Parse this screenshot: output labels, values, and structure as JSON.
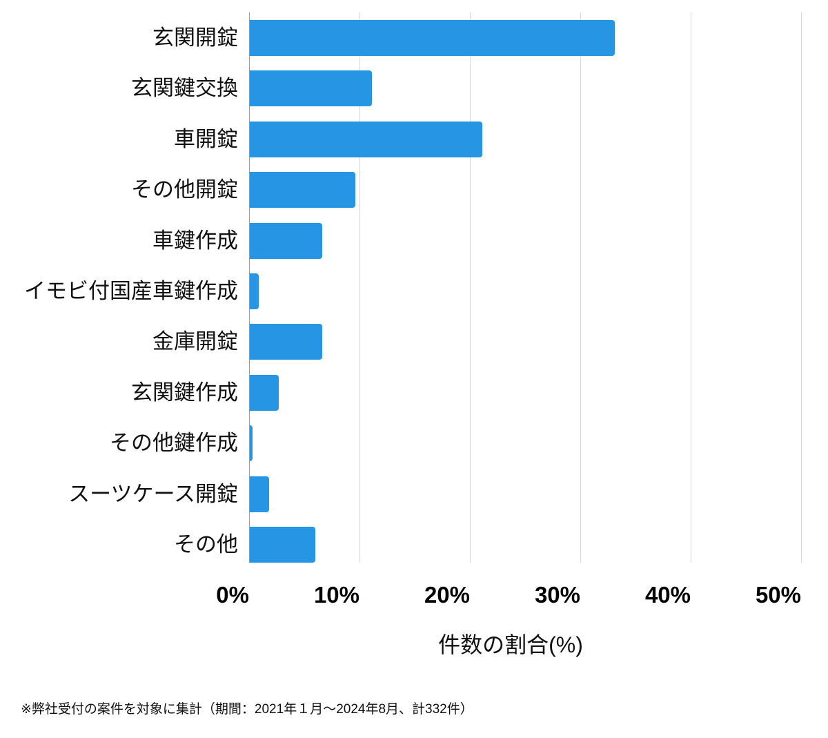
{
  "chart_data": {
    "type": "bar",
    "orientation": "horizontal",
    "title": "",
    "categories": [
      "玄関開錠",
      "玄関鍵交換",
      "車開錠",
      "その他開錠",
      "車鍵作成",
      "イモビ付国産車鍵作成",
      "金庫開錠",
      "玄関鍵作成",
      "その他鍵作成",
      "スーツケース開錠",
      "その他"
    ],
    "values": [
      33.1,
      11.1,
      21.1,
      9.6,
      6.6,
      0.9,
      6.6,
      2.7,
      0.3,
      1.8,
      6.0
    ],
    "xlabel": "件数の割合(%)",
    "ylabel": "",
    "xlim": [
      0,
      50
    ],
    "xticks": [
      "0%",
      "10%",
      "20%",
      "30%",
      "40%",
      "50%"
    ],
    "grid": "vertical",
    "legend": null,
    "bar_color": "#2595e4"
  },
  "footnote": "※弊社受付の案件を対象に集計（期間：2021年１月～2024年8月、計332件）"
}
